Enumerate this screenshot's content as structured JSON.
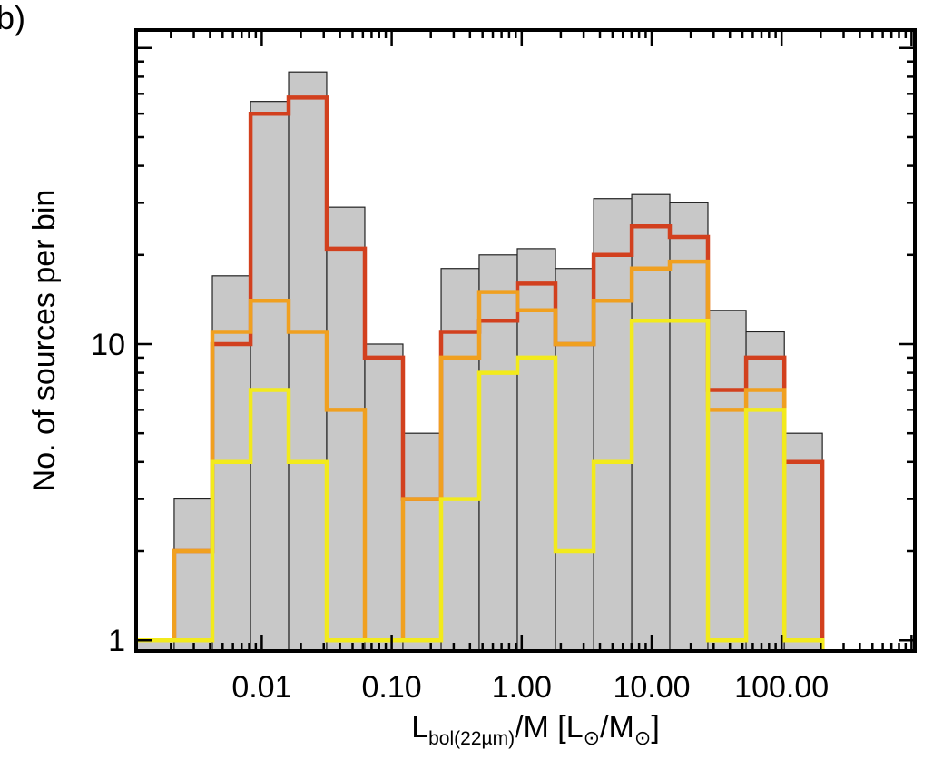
{
  "chart_data": {
    "type": "bar",
    "panel_label": "b)",
    "title": "",
    "xlabel": {
      "prefix": "L",
      "prefix_sub": "bol(22µm)",
      "mid": "/M [L",
      "sun1": "⊙",
      "slash": "/M",
      "sun2": "⊙",
      "suffix": "]"
    },
    "ylabel": "No. of sources per bin",
    "x_scale": "log",
    "y_scale": "log",
    "xlim": [
      0.00108,
      1060
    ],
    "ylim": [
      0.92,
      115
    ],
    "x_ticks": [
      0.01,
      0.1,
      1,
      10,
      100
    ],
    "x_tick_labels": [
      "0.01",
      "0.10",
      "1.00",
      "10.00",
      "100.00"
    ],
    "y_ticks": [
      1,
      10
    ],
    "y_tick_labels": [
      "1",
      "10"
    ],
    "grid": false,
    "bin_edges": [
      0.00108,
      0.00212,
      0.00417,
      0.0082,
      0.0161,
      0.0316,
      0.0621,
      0.122,
      0.24,
      0.471,
      0.926,
      1.82,
      3.58,
      7.03,
      13.8,
      27.1,
      53.3,
      105,
      206
    ],
    "series": [
      {
        "name": "",
        "style": "filled-gray",
        "values": [
          1,
          3,
          17,
          66,
          83,
          29,
          10,
          5,
          18,
          20,
          21,
          18,
          31,
          32,
          30,
          13,
          11,
          5
        ]
      },
      {
        "name": "",
        "style": "red-step",
        "values": [
          1,
          2,
          10,
          60,
          68,
          21,
          9,
          3,
          11,
          12,
          16,
          10,
          20,
          25,
          23,
          7,
          9,
          4
        ]
      },
      {
        "name": "",
        "style": "orange-step",
        "values": [
          1,
          2,
          11,
          14,
          11,
          6,
          1,
          3,
          9,
          15,
          13,
          10,
          14,
          18,
          19,
          6,
          7,
          1
        ]
      },
      {
        "name": "",
        "style": "yellow-step",
        "values": [
          1,
          1,
          4,
          7,
          4,
          1,
          1,
          1,
          3,
          8,
          9,
          2,
          4,
          12,
          12,
          1,
          6,
          1
        ]
      }
    ],
    "colors": {
      "fill": "#c8c8c8",
      "gray_edge": "#222222",
      "red": "#d2401e",
      "orange": "#f0a020",
      "yellow": "#f2ea1c",
      "axis": "#000000"
    }
  }
}
